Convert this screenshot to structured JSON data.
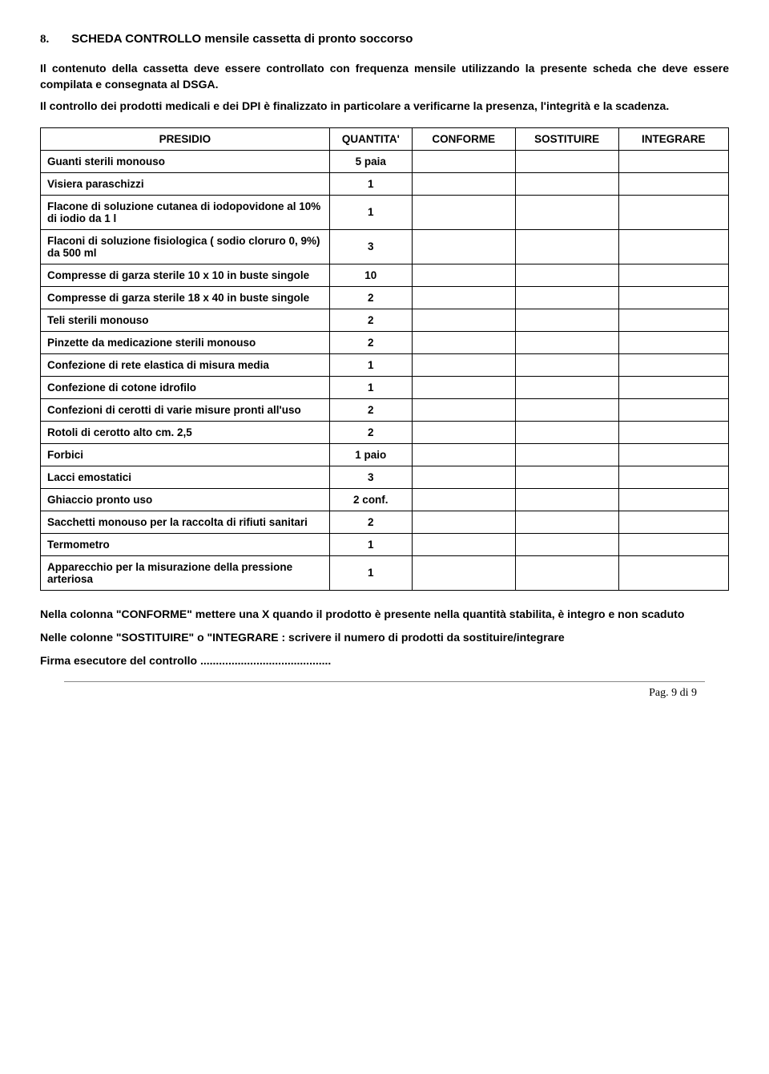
{
  "section": {
    "number": "8.",
    "title": "SCHEDA CONTROLLO mensile cassetta di pronto soccorso"
  },
  "intro1": "Il contenuto della cassetta deve essere controllato con frequenza mensile utilizzando la presente scheda che deve essere compilata e consegnata al DSGA.",
  "intro2": "Il controllo dei prodotti medicali e dei DPI è finalizzato in particolare a verificarne la presenza, l'integrità e la scadenza.",
  "table": {
    "headers": {
      "presidio": "PRESIDIO",
      "quantita": "QUANTITA'",
      "conforme": "CONFORME",
      "sostituire": "SOSTITUIRE",
      "integrare": "INTEGRARE"
    },
    "rows": [
      {
        "desc": "Guanti sterili monouso",
        "qty": "5 paia"
      },
      {
        "desc": "Visiera paraschizzi",
        "qty": "1"
      },
      {
        "desc": "Flacone di soluzione cutanea di iodopovidone al 10% di iodio da 1 l",
        "qty": "1"
      },
      {
        "desc": "Flaconi di soluzione fisiologica ( sodio cloruro  0, 9%) da 500 ml",
        "qty": "3"
      },
      {
        "desc": "Compresse di garza sterile 10 x 10 in buste singole",
        "qty": "10"
      },
      {
        "desc": "Compresse di garza sterile 18 x 40 in buste singole",
        "qty": "2"
      },
      {
        "desc": "Teli sterili monouso",
        "qty": "2"
      },
      {
        "desc": "Pinzette da medicazione sterili monouso",
        "qty": "2"
      },
      {
        "desc": "Confezione di rete elastica di misura media",
        "qty": "1"
      },
      {
        "desc": "Confezione di cotone idrofilo",
        "qty": "1"
      },
      {
        "desc": "Confezioni di cerotti di varie misure pronti all'uso",
        "qty": "2"
      },
      {
        "desc": "Rotoli di cerotto alto cm. 2,5",
        "qty": "2"
      },
      {
        "desc": "Forbici",
        "qty": "1 paio"
      },
      {
        "desc": "Lacci emostatici",
        "qty": "3"
      },
      {
        "desc": "Ghiaccio pronto uso",
        "qty": "2 conf."
      },
      {
        "desc": "Sacchetti monouso per la raccolta di rifiuti sanitari",
        "qty": "2"
      },
      {
        "desc": "Termometro",
        "qty": "1"
      },
      {
        "desc": "Apparecchio per la misurazione della pressione arteriosa",
        "qty": "1"
      }
    ]
  },
  "note1": "Nella colonna \"CONFORME\" mettere una X quando il prodotto è presente nella quantità stabilita, è integro e non scaduto",
  "note2": "Nelle colonne \"SOSTITUIRE\" o \"INTEGRARE : scrivere il numero di prodotti da sostituire/integrare",
  "signature": "Firma esecutore del controllo ..........................................",
  "footer": "Pag.  9 di 9"
}
